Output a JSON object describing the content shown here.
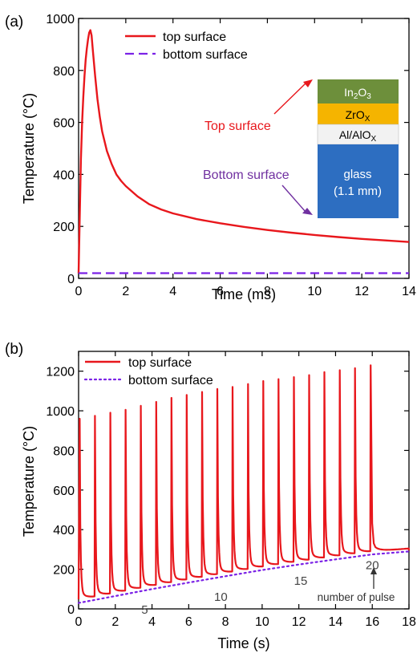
{
  "chart_data": [
    {
      "panel_label": "(a)",
      "type": "line",
      "xlabel": "Time (ms)",
      "ylabel": "Temperature (°C)",
      "xlim": [
        0,
        14
      ],
      "ylim": [
        0,
        1000
      ],
      "xticks": [
        0,
        2,
        4,
        6,
        8,
        10,
        12,
        14
      ],
      "yticks": [
        0,
        200,
        400,
        600,
        800,
        1000
      ],
      "legend_position": "top-left",
      "series": [
        {
          "name": "top surface",
          "color": "#e8171c",
          "style": "solid",
          "x": [
            0,
            0.05,
            0.1,
            0.15,
            0.2,
            0.25,
            0.3,
            0.35,
            0.4,
            0.45,
            0.5,
            0.55,
            0.6,
            0.7,
            0.8,
            0.9,
            1.0,
            1.2,
            1.4,
            1.6,
            1.8,
            2.0,
            2.5,
            3.0,
            3.5,
            4.0,
            5.0,
            6.0,
            7.0,
            8.0,
            9.0,
            10.0,
            11.0,
            12.0,
            13.0,
            14.0
          ],
          "values": [
            20,
            250,
            460,
            600,
            700,
            780,
            840,
            885,
            920,
            945,
            955,
            935,
            880,
            780,
            690,
            620,
            565,
            490,
            440,
            400,
            375,
            355,
            315,
            285,
            265,
            250,
            228,
            212,
            198,
            186,
            176,
            167,
            159,
            152,
            146,
            140
          ]
        },
        {
          "name": "bottom surface",
          "color": "#7b22e6",
          "style": "dashed",
          "x": [
            0,
            14
          ],
          "values": [
            20,
            20
          ]
        }
      ],
      "annotations": {
        "top_label": "Top surface",
        "bottom_label": "Bottom surface",
        "stack_layers": [
          {
            "label": "In",
            "sub1": "2",
            "mid": "O",
            "sub2": "3",
            "color": "#6d8f3b",
            "text_color": "#ffffff"
          },
          {
            "label": "ZrO",
            "sub1": "X",
            "color": "#f5b400",
            "text_color": "#000000"
          },
          {
            "label": "Al/AlO",
            "sub1": "X",
            "color": "#f2f2f2",
            "text_color": "#000000"
          },
          {
            "label": "glass",
            "label2": "(1.1 mm)",
            "color": "#2d6ec1",
            "text_color": "#ffffff"
          }
        ]
      }
    },
    {
      "panel_label": "(b)",
      "type": "line",
      "xlabel": "Time (s)",
      "ylabel": "Temperature (°C)",
      "xlim": [
        0,
        18
      ],
      "ylim": [
        0,
        1300
      ],
      "xticks": [
        0,
        2,
        4,
        6,
        8,
        10,
        12,
        14,
        16,
        18
      ],
      "yticks": [
        0,
        200,
        400,
        600,
        800,
        1000,
        1200
      ],
      "legend_position": "top-left",
      "series": [
        {
          "name": "top surface",
          "color": "#e8171c",
          "style": "solid",
          "pulse_times": [
            0.05,
            0.88,
            1.72,
            2.55,
            3.38,
            4.22,
            5.05,
            5.88,
            6.72,
            7.55,
            8.38,
            9.22,
            10.05,
            10.88,
            11.72,
            12.55,
            13.38,
            14.22,
            15.05,
            15.9
          ],
          "pulse_peaks": [
            960,
            975,
            990,
            1005,
            1025,
            1045,
            1065,
            1080,
            1095,
            1110,
            1120,
            1135,
            1150,
            1160,
            1170,
            1180,
            1195,
            1205,
            1215,
            1230
          ]
        },
        {
          "name": "bottom surface",
          "color": "#7b22e6",
          "style": "dotted",
          "x": [
            0,
            2,
            4,
            6,
            8,
            10,
            12,
            14,
            16,
            18
          ],
          "values": [
            30,
            65,
            100,
            133,
            165,
            196,
            224,
            250,
            275,
            290
          ]
        }
      ],
      "annotations": {
        "pulse_numbers": [
          {
            "label": "5",
            "x": 3.6,
            "y": 65
          },
          {
            "label": "10",
            "x": 7.75,
            "y": 130
          },
          {
            "label": "15",
            "x": 12.1,
            "y": 210
          },
          {
            "label": "20",
            "x": 16.0,
            "y": 290
          }
        ],
        "caption": "number of pulse"
      }
    }
  ]
}
